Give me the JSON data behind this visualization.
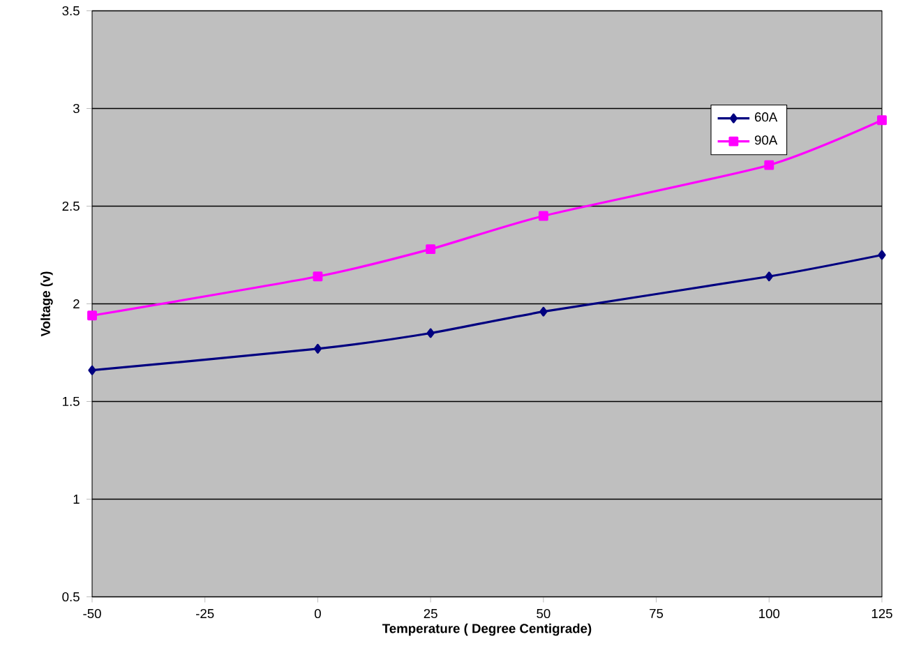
{
  "chart_data": {
    "type": "line",
    "xlabel": "Temperature ( Degree Centigrade)",
    "ylabel": "Voltage (v)",
    "x": [
      -50,
      0,
      25,
      50,
      100,
      125
    ],
    "series": [
      {
        "name": "60A",
        "color": "#000080",
        "marker": "diamond",
        "values": [
          1.66,
          1.77,
          1.85,
          1.96,
          2.14,
          2.25
        ]
      },
      {
        "name": "90A",
        "color": "#ff00ff",
        "marker": "square",
        "values": [
          1.94,
          2.14,
          2.28,
          2.45,
          2.71,
          2.94
        ]
      }
    ],
    "xlim": [
      -50,
      125
    ],
    "xticks": [
      -50,
      -25,
      0,
      25,
      50,
      75,
      100,
      125
    ],
    "ylim": [
      0.5,
      3.5
    ],
    "yticks": [
      0.5,
      1,
      1.5,
      2,
      2.5,
      3,
      3.5
    ],
    "grid": "y",
    "legend": "top right",
    "line_style": "solid"
  }
}
